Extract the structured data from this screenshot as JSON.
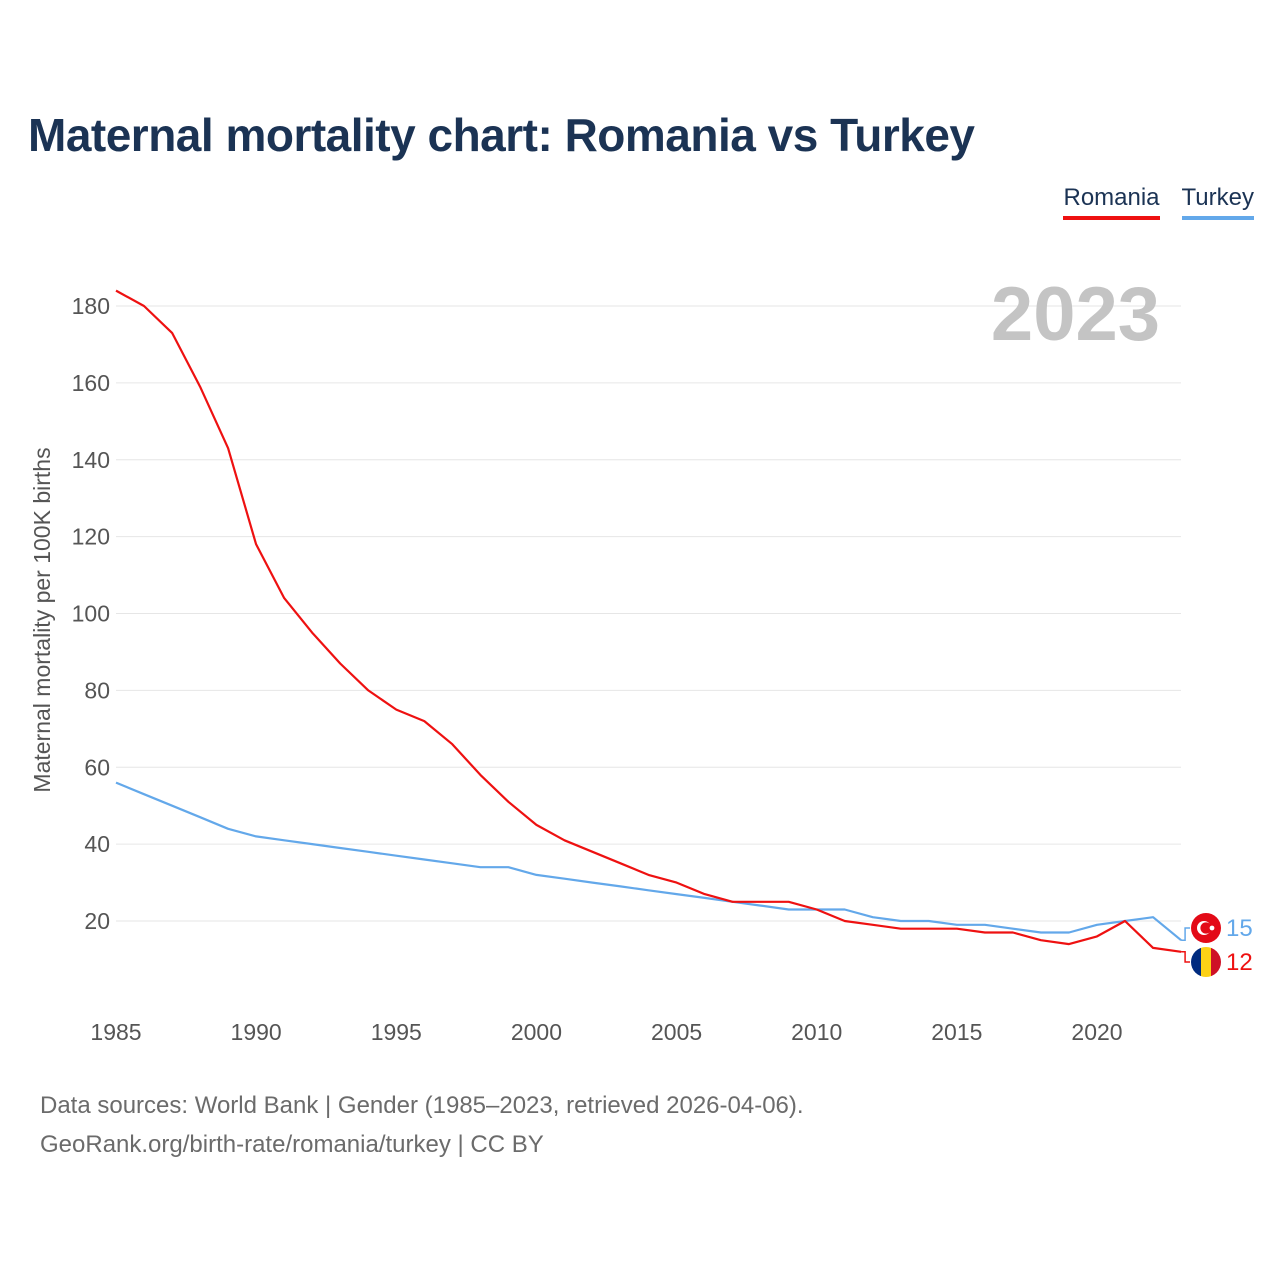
{
  "title": "Maternal mortality chart: Romania vs Turkey",
  "legend": [
    {
      "label": "Romania",
      "color": "#ee1111"
    },
    {
      "label": "Turkey",
      "color": "#63a8ea"
    }
  ],
  "chart_data": {
    "type": "line",
    "title": "Maternal mortality chart: Romania vs Turkey",
    "xlabel": "",
    "ylabel": "Maternal mortality per 100K births",
    "year_label": "2023",
    "xlim": [
      1985,
      2023
    ],
    "ylim": [
      0,
      185
    ],
    "x_ticks": [
      1985,
      1990,
      1995,
      2000,
      2005,
      2010,
      2015,
      2020
    ],
    "y_ticks": [
      20,
      40,
      60,
      80,
      100,
      120,
      140,
      160,
      180
    ],
    "x": [
      1985,
      1986,
      1987,
      1988,
      1989,
      1990,
      1991,
      1992,
      1993,
      1994,
      1995,
      1996,
      1997,
      1998,
      1999,
      2000,
      2001,
      2002,
      2003,
      2004,
      2005,
      2006,
      2007,
      2008,
      2009,
      2010,
      2011,
      2012,
      2013,
      2014,
      2015,
      2016,
      2017,
      2018,
      2019,
      2020,
      2021,
      2022,
      2023
    ],
    "series": [
      {
        "name": "Romania",
        "color": "#ee1111",
        "end_label": "12",
        "values": [
          184,
          180,
          173,
          159,
          143,
          118,
          104,
          95,
          87,
          80,
          75,
          72,
          66,
          58,
          51,
          45,
          41,
          38,
          35,
          32,
          30,
          27,
          25,
          25,
          25,
          23,
          20,
          19,
          18,
          18,
          18,
          17,
          17,
          15,
          14,
          16,
          20,
          13,
          12
        ]
      },
      {
        "name": "Turkey",
        "color": "#63a8ea",
        "end_label": "15",
        "values": [
          56,
          53,
          50,
          47,
          44,
          42,
          41,
          40,
          39,
          38,
          37,
          36,
          35,
          34,
          34,
          32,
          31,
          30,
          29,
          28,
          27,
          26,
          25,
          24,
          23,
          23,
          23,
          21,
          20,
          20,
          19,
          19,
          18,
          17,
          17,
          19,
          20,
          21,
          15
        ]
      }
    ]
  },
  "footer": {
    "line1": "Data sources: World Bank | Gender (1985–2023, retrieved 2026-04-06).",
    "line2": "GeoRank.org/birth-rate/romania/turkey | CC BY"
  }
}
